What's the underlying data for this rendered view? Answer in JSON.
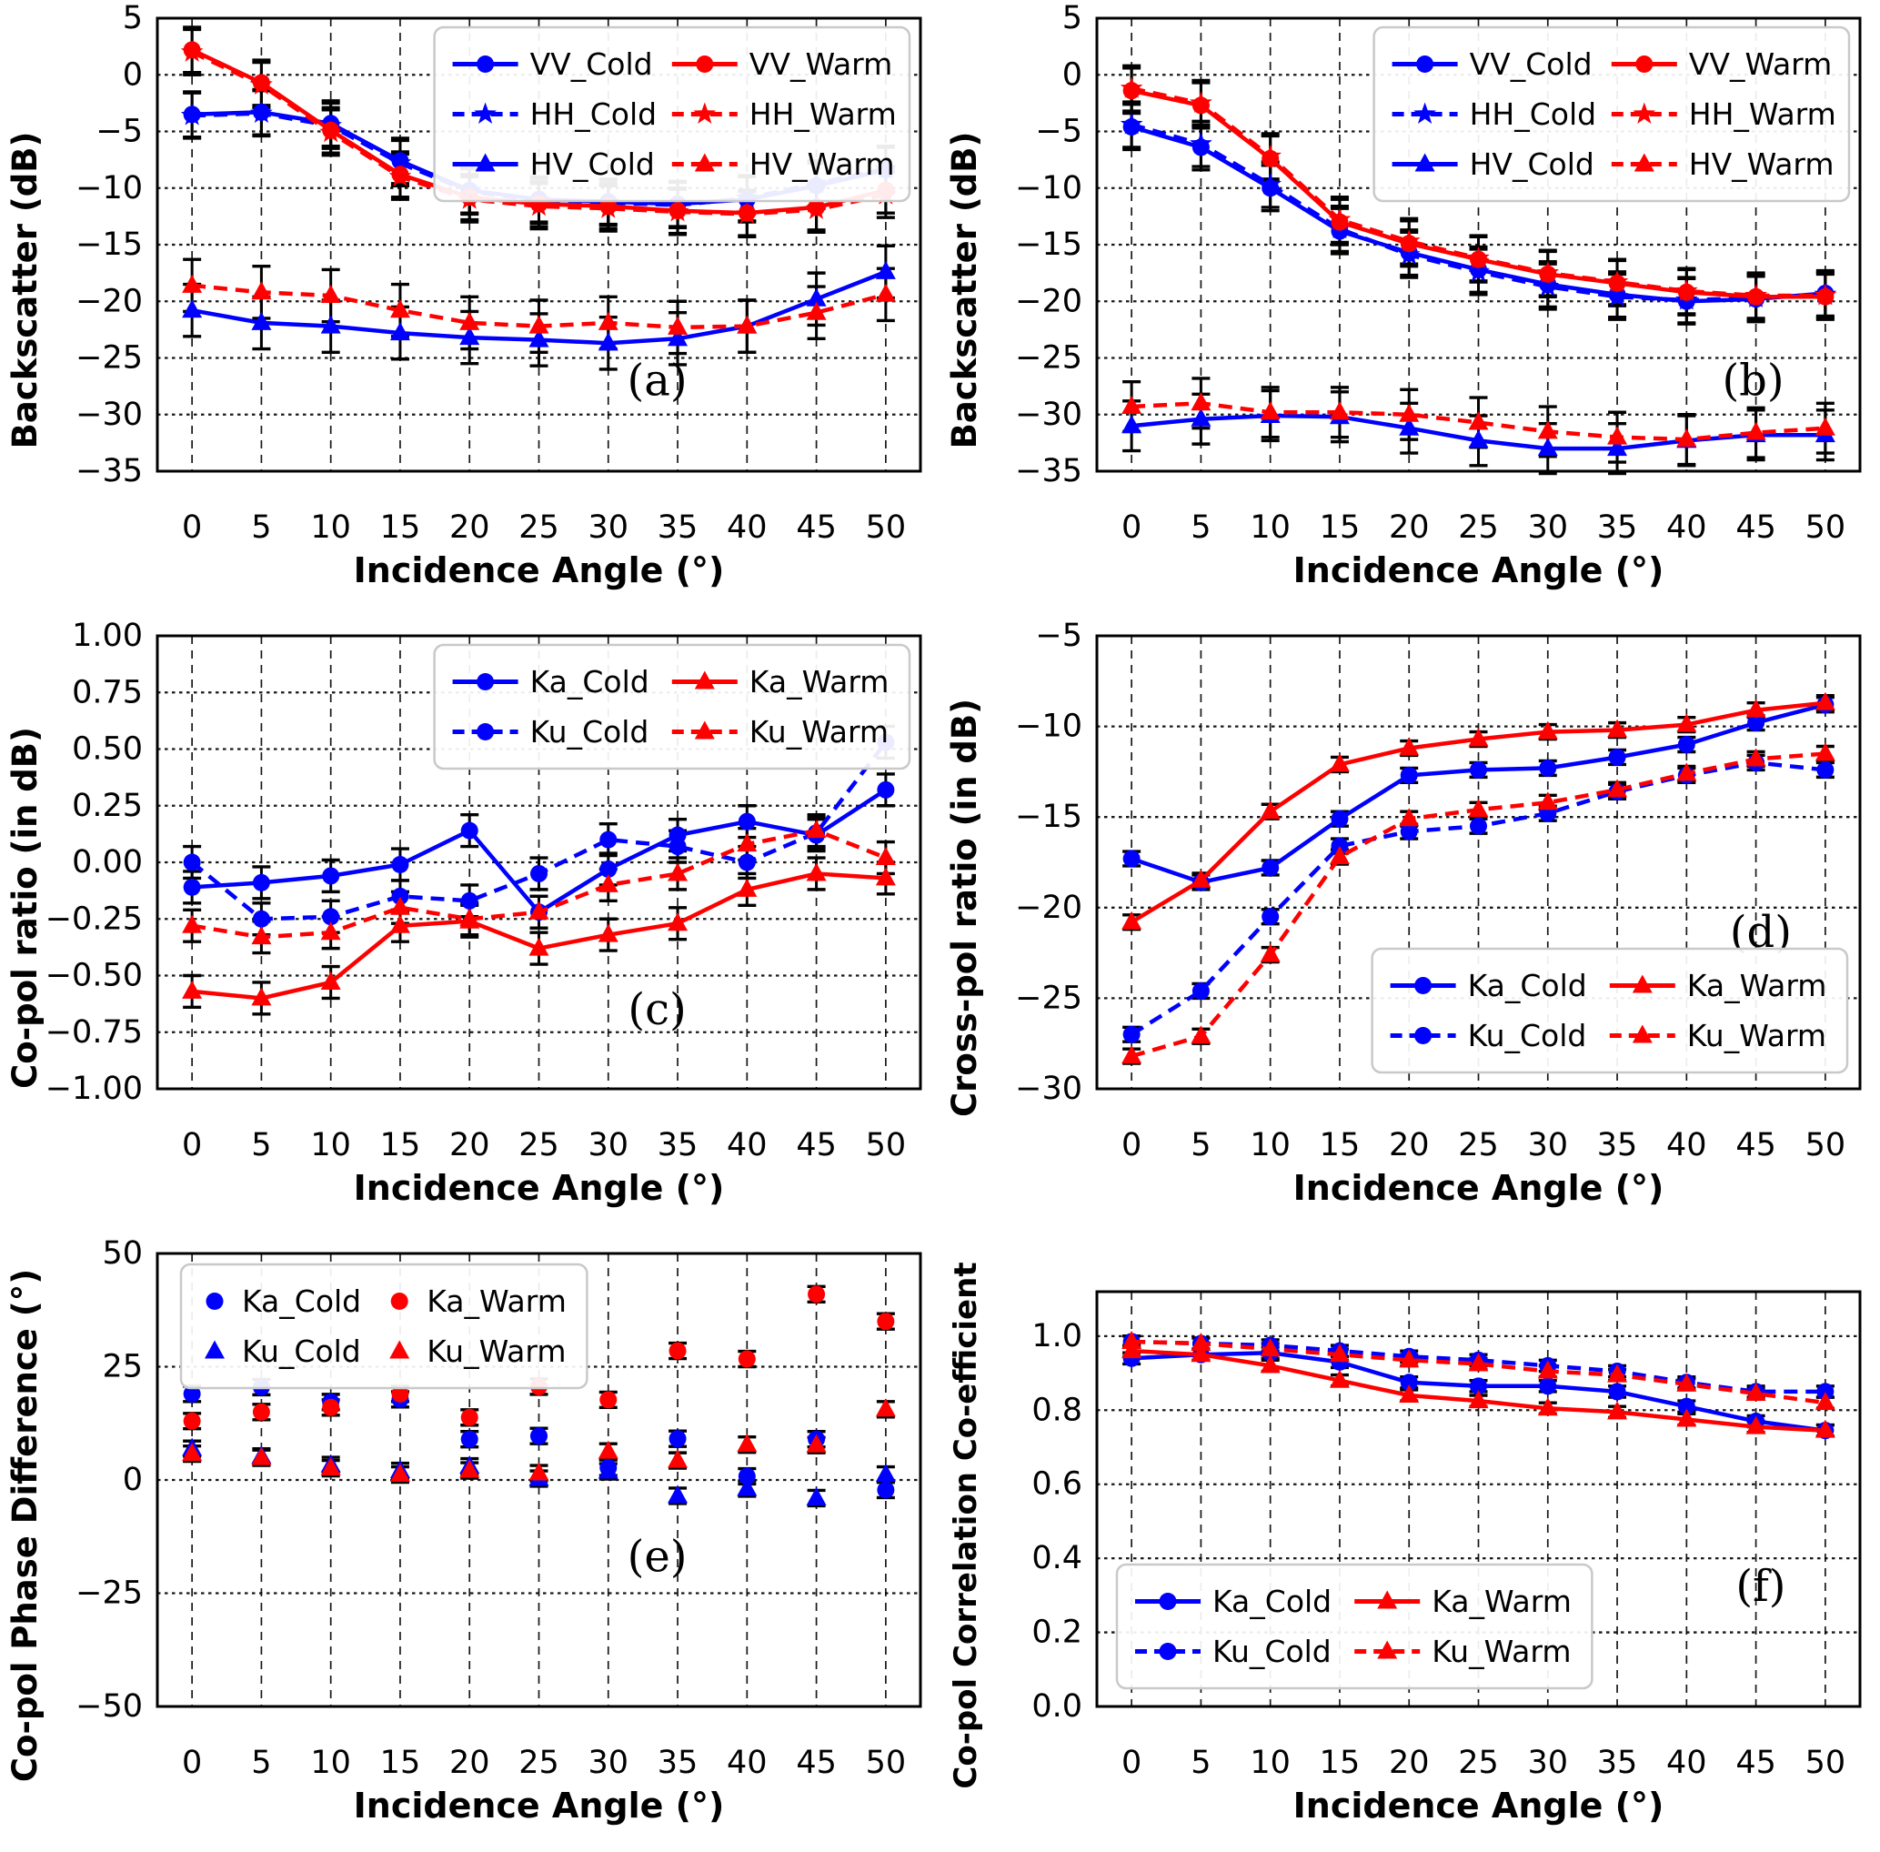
{
  "figure": {
    "title": "",
    "background": "#ffffff",
    "colors": {
      "cold": "#0000ff",
      "warm": "#ff0000",
      "errorbar": "#000000",
      "grid": "#000000"
    }
  },
  "chart_data": [
    {
      "id": "a",
      "tag": "(a)",
      "type": "line",
      "xlabel": "Incidence Angle (°)",
      "ylabel": "Backscatter (dB)",
      "x": [
        0,
        5,
        10,
        15,
        20,
        25,
        30,
        35,
        40,
        45,
        50
      ],
      "xtick_labels": [
        "0",
        "5",
        "10",
        "15",
        "20",
        "25",
        "30",
        "35",
        "40",
        "45",
        "50"
      ],
      "xlim": [
        -2.5,
        52.5
      ],
      "ylim": [
        -35,
        5
      ],
      "yticks": [
        5,
        0,
        -5,
        -10,
        -15,
        -20,
        -25,
        -30,
        -35
      ],
      "ytick_labels": [
        "5",
        "0",
        "−5",
        "−10",
        "−15",
        "−20",
        "−25",
        "−30",
        "−35"
      ],
      "grid": true,
      "tag_pos": [
        0.655,
        0.8
      ],
      "legend": {
        "position": "top-right",
        "columns": 2,
        "sample": "line-marker"
      },
      "series": [
        {
          "name": "VV_Cold",
          "color": "#0000ff",
          "line": "solid",
          "marker": "circle",
          "err": 2.0,
          "values": [
            -3.5,
            -3.3,
            -4.3,
            -7.6,
            -10.2,
            -11.0,
            -11.2,
            -11.4,
            -11.0,
            -9.8,
            -8.4
          ]
        },
        {
          "name": "HH_Cold",
          "color": "#0000ff",
          "line": "dashed",
          "marker": "star",
          "err": 2.0,
          "values": [
            -3.6,
            -3.4,
            -4.5,
            -7.8,
            -10.3,
            -11.1,
            -11.3,
            -11.5,
            -10.9,
            -9.6,
            -8.3
          ]
        },
        {
          "name": "HV_Cold",
          "color": "#0000ff",
          "line": "solid",
          "marker": "triangle",
          "err": 2.3,
          "values": [
            -20.8,
            -21.9,
            -22.2,
            -22.8,
            -23.2,
            -23.4,
            -23.7,
            -23.3,
            -22.2,
            -19.8,
            -17.4
          ]
        },
        {
          "name": "VV_Warm",
          "color": "#ff0000",
          "line": "solid",
          "marker": "circle",
          "err": 2.0,
          "values": [
            2.2,
            -0.7,
            -4.9,
            -8.8,
            -10.8,
            -11.4,
            -11.6,
            -12.0,
            -12.2,
            -11.7,
            -10.2
          ]
        },
        {
          "name": "HH_Warm",
          "color": "#ff0000",
          "line": "dashed",
          "marker": "star",
          "err": 2.0,
          "values": [
            2.0,
            -0.9,
            -5.1,
            -9.0,
            -11.0,
            -11.6,
            -11.8,
            -12.1,
            -12.3,
            -11.9,
            -10.6
          ]
        },
        {
          "name": "HV_Warm",
          "color": "#ff0000",
          "line": "dashed",
          "marker": "triangle",
          "err": 2.3,
          "values": [
            -18.6,
            -19.2,
            -19.5,
            -20.8,
            -21.9,
            -22.2,
            -21.9,
            -22.3,
            -22.2,
            -21.0,
            -19.4
          ]
        }
      ]
    },
    {
      "id": "b",
      "tag": "(b)",
      "type": "line",
      "xlabel": "Incidence Angle (°)",
      "ylabel": "Backscatter (dB)",
      "x": [
        0,
        5,
        10,
        15,
        20,
        25,
        30,
        35,
        40,
        45,
        50
      ],
      "xtick_labels": [
        "0",
        "5",
        "10",
        "15",
        "20",
        "25",
        "30",
        "35",
        "40",
        "45",
        "50"
      ],
      "xlim": [
        -2.5,
        52.5
      ],
      "ylim": [
        -35,
        5
      ],
      "yticks": [
        5,
        0,
        -5,
        -10,
        -15,
        -20,
        -25,
        -30,
        -35
      ],
      "ytick_labels": [
        "5",
        "0",
        "−5",
        "−10",
        "−15",
        "−20",
        "−25",
        "−30",
        "−35"
      ],
      "grid": true,
      "tag_pos": [
        0.86,
        0.8
      ],
      "legend": {
        "position": "top-right",
        "columns": 2,
        "sample": "line-marker"
      },
      "series": [
        {
          "name": "VV_Cold",
          "color": "#0000ff",
          "line": "solid",
          "marker": "circle",
          "err": 2.0,
          "values": [
            -4.6,
            -6.4,
            -10.0,
            -13.8,
            -15.7,
            -17.2,
            -18.5,
            -19.4,
            -20.0,
            -19.8,
            -19.3
          ]
        },
        {
          "name": "HH_Cold",
          "color": "#0000ff",
          "line": "dashed",
          "marker": "star",
          "err": 2.0,
          "values": [
            -4.4,
            -6.1,
            -9.7,
            -13.6,
            -15.9,
            -17.4,
            -18.7,
            -19.6,
            -19.9,
            -19.7,
            -19.4
          ]
        },
        {
          "name": "HV_Cold",
          "color": "#0000ff",
          "line": "solid",
          "marker": "triangle",
          "err": 2.2,
          "values": [
            -31.0,
            -30.4,
            -30.1,
            -30.2,
            -31.2,
            -32.3,
            -33.0,
            -33.0,
            -32.3,
            -31.8,
            -31.8
          ]
        },
        {
          "name": "VV_Warm",
          "color": "#ff0000",
          "line": "solid",
          "marker": "circle",
          "err": 2.0,
          "values": [
            -1.4,
            -2.7,
            -7.4,
            -13.0,
            -14.9,
            -16.3,
            -17.6,
            -18.4,
            -19.2,
            -19.6,
            -19.6
          ]
        },
        {
          "name": "HH_Warm",
          "color": "#ff0000",
          "line": "dashed",
          "marker": "star",
          "err": 2.0,
          "values": [
            -1.2,
            -2.5,
            -7.2,
            -12.8,
            -14.7,
            -16.2,
            -17.5,
            -18.3,
            -19.1,
            -19.5,
            -19.5
          ]
        },
        {
          "name": "HV_Warm",
          "color": "#ff0000",
          "line": "dashed",
          "marker": "triangle",
          "err": 2.2,
          "values": [
            -29.3,
            -29.0,
            -29.8,
            -29.8,
            -30.0,
            -30.7,
            -31.5,
            -32.0,
            -32.2,
            -31.6,
            -31.2
          ]
        }
      ]
    },
    {
      "id": "c",
      "tag": "(c)",
      "type": "line",
      "xlabel": "Incidence Angle (°)",
      "ylabel": "Co-pol ratio (in dB)",
      "x": [
        0,
        5,
        10,
        15,
        20,
        25,
        30,
        35,
        40,
        45,
        50
      ],
      "xtick_labels": [
        "0",
        "5",
        "10",
        "15",
        "20",
        "25",
        "30",
        "35",
        "40",
        "45",
        "50"
      ],
      "xlim": [
        -2.5,
        52.5
      ],
      "ylim": [
        -1.0,
        1.0
      ],
      "yticks": [
        1.0,
        0.75,
        0.5,
        0.25,
        0.0,
        -0.25,
        -0.5,
        -0.75,
        -1.0
      ],
      "ytick_labels": [
        "1.00",
        "0.75",
        "0.50",
        "0.25",
        "0.00",
        "−0.25",
        "−0.50",
        "−0.75",
        "−1.00"
      ],
      "grid": true,
      "tag_pos": [
        0.655,
        0.825
      ],
      "legend": {
        "position": "top-right",
        "columns": 2,
        "sample": "line-marker"
      },
      "series": [
        {
          "name": "Ka_Cold",
          "color": "#0000ff",
          "line": "solid",
          "marker": "circle",
          "err": 0.07,
          "values": [
            -0.11,
            -0.09,
            -0.06,
            -0.01,
            0.14,
            -0.22,
            -0.03,
            0.12,
            0.18,
            0.12,
            0.32
          ]
        },
        {
          "name": "Ku_Cold",
          "color": "#0000ff",
          "line": "dashed",
          "marker": "circle",
          "err": 0.07,
          "values": [
            0.0,
            -0.25,
            -0.24,
            -0.15,
            -0.17,
            -0.05,
            0.1,
            0.07,
            0.0,
            0.13,
            0.53
          ]
        },
        {
          "name": "Ka_Warm",
          "color": "#ff0000",
          "line": "solid",
          "marker": "triangle",
          "err": 0.07,
          "values": [
            -0.57,
            -0.6,
            -0.53,
            -0.28,
            -0.26,
            -0.38,
            -0.32,
            -0.27,
            -0.12,
            -0.05,
            -0.07
          ]
        },
        {
          "name": "Ku_Warm",
          "color": "#ff0000",
          "line": "dashed",
          "marker": "triangle",
          "err": 0.07,
          "values": [
            -0.28,
            -0.33,
            -0.31,
            -0.2,
            -0.25,
            -0.22,
            -0.1,
            -0.05,
            0.08,
            0.14,
            0.02
          ]
        }
      ]
    },
    {
      "id": "d",
      "tag": "(d)",
      "type": "line",
      "xlabel": "Incidence Angle (°)",
      "ylabel": "Cross-pol ratio (in dB)",
      "x": [
        0,
        5,
        10,
        15,
        20,
        25,
        30,
        35,
        40,
        45,
        50
      ],
      "xtick_labels": [
        "0",
        "5",
        "10",
        "15",
        "20",
        "25",
        "30",
        "35",
        "40",
        "45",
        "50"
      ],
      "xlim": [
        -2.5,
        52.5
      ],
      "ylim": [
        -30,
        -5
      ],
      "yticks": [
        -5,
        -10,
        -15,
        -20,
        -25,
        -30
      ],
      "ytick_labels": [
        "−5",
        "−10",
        "−15",
        "−20",
        "−25",
        "−30"
      ],
      "grid": true,
      "tag_pos": [
        0.87,
        0.655
      ],
      "legend": {
        "position": "bottom-right",
        "columns": 2,
        "sample": "line-marker"
      },
      "series": [
        {
          "name": "Ka_Cold",
          "color": "#0000ff",
          "line": "solid",
          "marker": "circle",
          "err": 0.4,
          "values": [
            -17.3,
            -18.6,
            -17.8,
            -15.1,
            -12.7,
            -12.4,
            -12.3,
            -11.7,
            -11.0,
            -9.8,
            -8.8
          ]
        },
        {
          "name": "Ku_Cold",
          "color": "#0000ff",
          "line": "dashed",
          "marker": "circle",
          "err": 0.4,
          "values": [
            -27.0,
            -24.6,
            -20.5,
            -16.6,
            -15.8,
            -15.5,
            -14.8,
            -13.6,
            -12.7,
            -12.0,
            -12.4
          ]
        },
        {
          "name": "Ka_Warm",
          "color": "#ff0000",
          "line": "solid",
          "marker": "triangle",
          "err": 0.4,
          "values": [
            -20.8,
            -18.5,
            -14.7,
            -12.1,
            -11.2,
            -10.7,
            -10.3,
            -10.2,
            -9.9,
            -9.1,
            -8.7
          ]
        },
        {
          "name": "Ku_Warm",
          "color": "#ff0000",
          "line": "dashed",
          "marker": "triangle",
          "err": 0.4,
          "values": [
            -28.2,
            -27.1,
            -22.6,
            -17.2,
            -15.1,
            -14.6,
            -14.2,
            -13.5,
            -12.6,
            -11.8,
            -11.5
          ]
        }
      ]
    },
    {
      "id": "e",
      "tag": "(e)",
      "type": "scatter",
      "xlabel": "Incidence Angle (°)",
      "ylabel": "Co-pol Phase Difference (°)",
      "x": [
        0,
        5,
        10,
        15,
        20,
        25,
        30,
        35,
        40,
        45,
        50
      ],
      "xtick_labels": [
        "0",
        "5",
        "10",
        "15",
        "20",
        "25",
        "30",
        "35",
        "40",
        "45",
        "50"
      ],
      "xlim": [
        -2.5,
        52.5
      ],
      "ylim": [
        -50,
        50
      ],
      "yticks": [
        50,
        25,
        0,
        -25,
        -50
      ],
      "ytick_labels": [
        "50",
        "25",
        "0",
        "−25",
        "−50"
      ],
      "grid": true,
      "tag_pos": [
        0.655,
        0.67
      ],
      "legend": {
        "position": "top-left",
        "columns": 2,
        "sample": "marker"
      },
      "series": [
        {
          "name": "Ka_Cold",
          "color": "#0000ff",
          "line": "none",
          "marker": "circle",
          "err": 1.7,
          "values": [
            19.0,
            20.5,
            17.2,
            17.8,
            9.0,
            9.7,
            2.7,
            9.1,
            0.8,
            9.0,
            -2.2
          ]
        },
        {
          "name": "Ku_Cold",
          "color": "#0000ff",
          "line": "none",
          "marker": "triangle",
          "err": 1.7,
          "values": [
            6.9,
            5.2,
            3.3,
            2.0,
            3.0,
            0.3,
            1.9,
            -3.5,
            -1.9,
            -4.0,
            1.2
          ]
        },
        {
          "name": "Ka_Warm",
          "color": "#ff0000",
          "line": "none",
          "marker": "circle",
          "err": 1.7,
          "values": [
            13.0,
            15.0,
            16.0,
            19.0,
            13.8,
            20.6,
            17.7,
            28.5,
            26.7,
            41.0,
            35.0
          ]
        },
        {
          "name": "Ku_Warm",
          "color": "#ff0000",
          "line": "none",
          "marker": "triangle",
          "err": 1.7,
          "values": [
            5.8,
            4.9,
            2.6,
            1.2,
            2.1,
            1.5,
            6.3,
            4.3,
            7.8,
            7.7,
            15.6
          ]
        }
      ]
    },
    {
      "id": "f",
      "tag": "(f)",
      "type": "line",
      "xlabel": "Incidence Angle (°)",
      "ylabel": "Co-pol Correlation Co-efficient",
      "x": [
        0,
        5,
        10,
        15,
        20,
        25,
        30,
        35,
        40,
        45,
        50
      ],
      "xtick_labels": [
        "0",
        "5",
        "10",
        "15",
        "20",
        "25",
        "30",
        "35",
        "40",
        "45",
        "50"
      ],
      "xlim": [
        -2.5,
        52.5
      ],
      "ylim": [
        0,
        1.12
      ],
      "yticks": [
        1.0,
        0.8,
        0.6,
        0.4,
        0.2,
        0.0
      ],
      "ytick_labels": [
        "1.0",
        "0.8",
        "0.6",
        "0.4",
        "0.2",
        "0.0"
      ],
      "grid": true,
      "tag_pos": [
        0.87,
        0.71
      ],
      "legend": {
        "position": "bottom-left",
        "columns": 2,
        "sample": "line-marker"
      },
      "series": [
        {
          "name": "Ka_Cold",
          "color": "#0000ff",
          "line": "solid",
          "marker": "circle",
          "err": 0.015,
          "values": [
            0.94,
            0.95,
            0.955,
            0.93,
            0.875,
            0.865,
            0.865,
            0.85,
            0.81,
            0.77,
            0.745
          ]
        },
        {
          "name": "Ku_Cold",
          "color": "#0000ff",
          "line": "dashed",
          "marker": "circle",
          "err": 0.015,
          "values": [
            0.985,
            0.98,
            0.975,
            0.96,
            0.945,
            0.935,
            0.92,
            0.905,
            0.875,
            0.85,
            0.85
          ]
        },
        {
          "name": "Ka_Warm",
          "color": "#ff0000",
          "line": "solid",
          "marker": "triangle",
          "err": 0.015,
          "values": [
            0.96,
            0.95,
            0.92,
            0.88,
            0.84,
            0.825,
            0.805,
            0.795,
            0.775,
            0.755,
            0.745
          ]
        },
        {
          "name": "Ku_Warm",
          "color": "#ff0000",
          "line": "dashed",
          "marker": "triangle",
          "err": 0.015,
          "values": [
            0.985,
            0.98,
            0.965,
            0.95,
            0.935,
            0.925,
            0.905,
            0.895,
            0.87,
            0.845,
            0.82
          ]
        }
      ]
    }
  ]
}
